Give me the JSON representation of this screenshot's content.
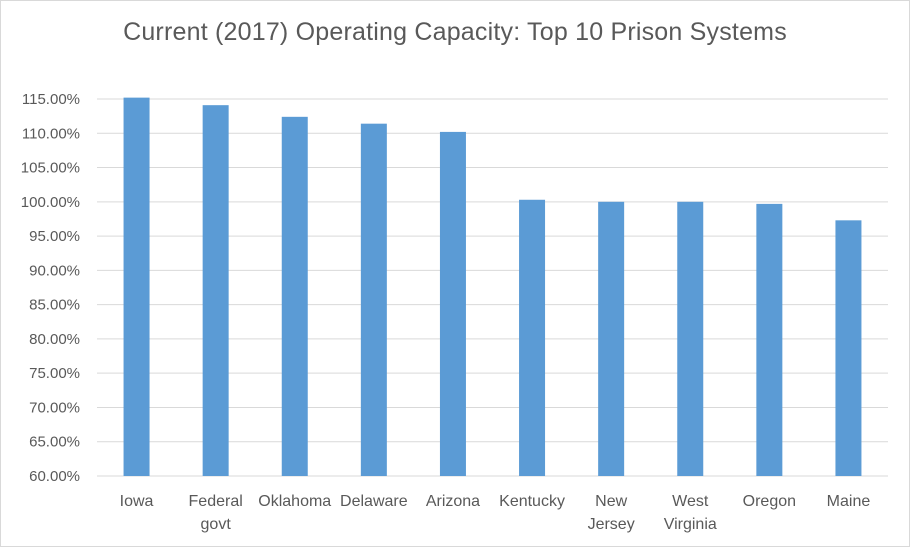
{
  "chart_data": {
    "type": "bar",
    "title": "Current (2017) Operating Capacity: Top 10 Prison Systems",
    "xlabel": "",
    "ylabel": "",
    "categories": [
      [
        "Iowa"
      ],
      [
        "Federal",
        "govt"
      ],
      [
        "Oklahoma"
      ],
      [
        "Delaware"
      ],
      [
        "Arizona"
      ],
      [
        "Kentucky"
      ],
      [
        "New",
        "Jersey"
      ],
      [
        "West",
        "Virginia"
      ],
      [
        "Oregon"
      ],
      [
        "Maine"
      ]
    ],
    "values": [
      115.2,
      114.1,
      112.4,
      111.4,
      110.2,
      100.3,
      100.0,
      100.0,
      99.7,
      97.3
    ],
    "ylim": [
      60,
      115
    ],
    "yticks": [
      "60.00%",
      "65.00%",
      "70.00%",
      "75.00%",
      "80.00%",
      "85.00%",
      "90.00%",
      "95.00%",
      "100.00%",
      "105.00%",
      "110.00%",
      "115.00%"
    ],
    "ytick_values": [
      60,
      65,
      70,
      75,
      80,
      85,
      90,
      95,
      100,
      105,
      110,
      115
    ],
    "grid": true,
    "legend": "none",
    "colors": {
      "bar": "#5b9bd5",
      "grid": "#d9d9d9",
      "text": "#595959"
    }
  }
}
